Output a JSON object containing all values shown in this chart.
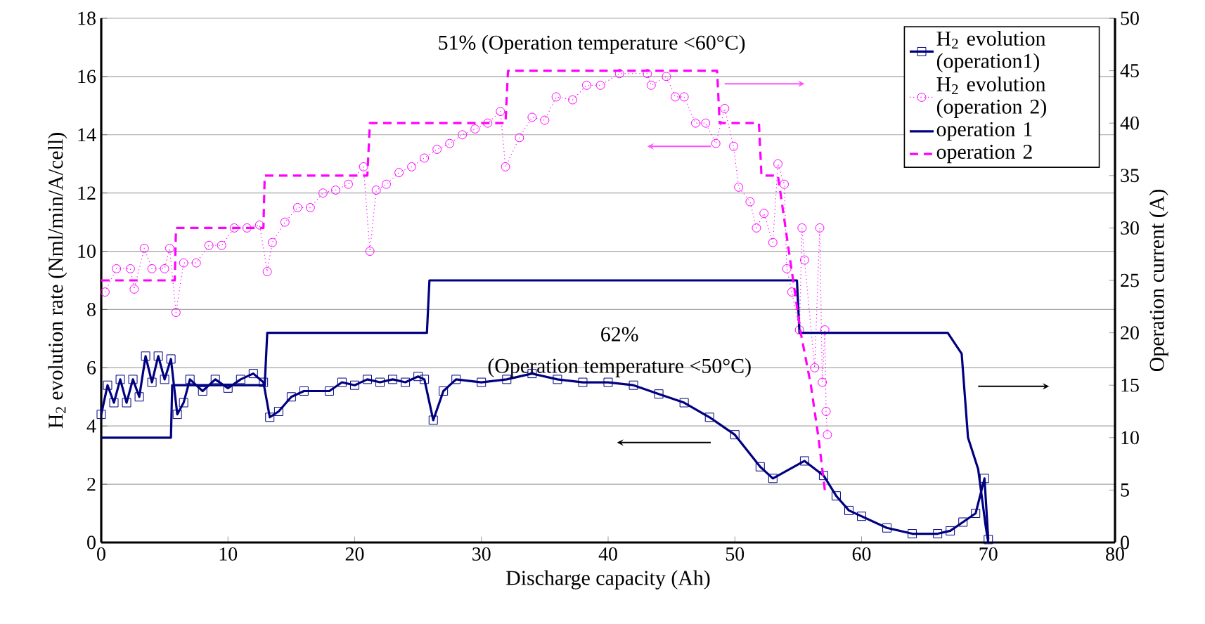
{
  "chart_data": {
    "type": "line",
    "xlabel": "Discharge capacity (Ah)",
    "ylabel": "H$_{2}$ evolution rate (Nml/min/A/cell)",
    "y2label": "Operation current (A)",
    "xlim": [
      0,
      80
    ],
    "xticks": [
      0,
      10,
      20,
      30,
      40,
      50,
      60,
      70,
      80
    ],
    "ylim": [
      0,
      18
    ],
    "yticks": [
      0,
      2,
      4,
      6,
      8,
      10,
      12,
      14,
      16,
      18
    ],
    "y2lim": [
      0,
      50
    ],
    "y2ticks": [
      0,
      5,
      10,
      15,
      20,
      25,
      30,
      35,
      40,
      45,
      50
    ],
    "grid": "y",
    "legend": "top right",
    "annotations": [
      "51% (Operation temperature <60°C)",
      "62%",
      "(Operation temperature <50°C)"
    ],
    "series": [
      {
        "name": "H$_{2}$ evolution (operation1)",
        "color": "#000080",
        "marker": "square",
        "line_style": "solid",
        "x": [
          0,
          0.5,
          1,
          1.5,
          2,
          2.5,
          3,
          3.5,
          4,
          4.5,
          5,
          5.5,
          6,
          6.5,
          7,
          8,
          9,
          10,
          11,
          12,
          12.8,
          13.3,
          14,
          15,
          16,
          18,
          19,
          20,
          21,
          22,
          23,
          24,
          25,
          25.5,
          26.2,
          27,
          28,
          30,
          32,
          34,
          36,
          38,
          40,
          42,
          44,
          46,
          48,
          50,
          52,
          53,
          55.5,
          57,
          58,
          59,
          60,
          62,
          64,
          66,
          67,
          68,
          69,
          69.7,
          70
        ],
        "values": [
          4.4,
          5.4,
          4.8,
          5.6,
          4.8,
          5.6,
          5.0,
          6.4,
          5.5,
          6.4,
          5.6,
          6.3,
          4.4,
          4.8,
          5.6,
          5.2,
          5.6,
          5.3,
          5.6,
          5.8,
          5.5,
          4.3,
          4.5,
          5.0,
          5.2,
          5.2,
          5.5,
          5.4,
          5.6,
          5.5,
          5.6,
          5.5,
          5.7,
          5.6,
          4.2,
          5.2,
          5.6,
          5.5,
          5.6,
          5.8,
          5.6,
          5.5,
          5.5,
          5.4,
          5.1,
          4.8,
          4.3,
          3.7,
          2.6,
          2.2,
          2.8,
          2.3,
          1.6,
          1.1,
          0.9,
          0.5,
          0.3,
          0.3,
          0.4,
          0.7,
          1.0,
          2.2,
          0.1
        ]
      },
      {
        "name": "H$_{2}$ evolution (operation 2)",
        "color": "#ff00ff",
        "marker": "circle",
        "line_style": "dotted",
        "x": [
          0.3,
          1.2,
          2.3,
          2.6,
          3.4,
          4,
          5,
          5.4,
          5.9,
          6.5,
          7.5,
          8.5,
          9.5,
          10.5,
          11.5,
          12.5,
          13.1,
          13.5,
          14.5,
          15.5,
          16.5,
          17.5,
          18.5,
          19.5,
          20.7,
          21.2,
          21.7,
          22.5,
          23.5,
          24.5,
          25.5,
          26.5,
          27.5,
          28.5,
          29.5,
          30.5,
          31.5,
          31.9,
          33,
          34,
          35,
          35.9,
          37.2,
          38.3,
          39.4,
          40.9,
          43.1,
          43.4,
          44.6,
          45.3,
          46,
          46.9,
          47.7,
          48.5,
          49.2,
          49.9,
          50.3,
          51.2,
          51.7,
          52.3,
          53,
          53.4,
          53.9,
          54.1,
          54.5,
          55.1,
          55.3,
          55.5,
          56.3,
          56.7,
          56.9,
          57.1,
          57.2,
          57.3
        ],
        "values": [
          8.6,
          9.4,
          9.4,
          8.7,
          10.1,
          9.4,
          9.4,
          10.1,
          7.9,
          9.6,
          9.6,
          10.2,
          10.2,
          10.8,
          10.8,
          10.9,
          9.3,
          10.3,
          11.0,
          11.5,
          11.5,
          12.0,
          12.1,
          12.3,
          12.9,
          10.0,
          12.1,
          12.3,
          12.7,
          12.9,
          13.2,
          13.5,
          13.7,
          14.0,
          14.2,
          14.4,
          14.8,
          12.9,
          13.9,
          14.6,
          14.5,
          15.3,
          15.2,
          15.7,
          15.7,
          16.1,
          16.1,
          15.7,
          16.0,
          15.3,
          15.3,
          14.4,
          14.4,
          13.7,
          14.9,
          13.6,
          12.2,
          11.7,
          10.8,
          11.3,
          10.3,
          13.0,
          12.3,
          9.4,
          8.6,
          7.3,
          10.8,
          9.7,
          6.0,
          10.8,
          5.5,
          7.3,
          4.5,
          3.7
        ]
      },
      {
        "name": "operation 1",
        "color": "#000080",
        "marker": "none",
        "line_style": "solid",
        "axis": "y2",
        "x": [
          0,
          5.5,
          5.6,
          12.9,
          13.1,
          25.7,
          25.9,
          54.9,
          55.1,
          66.8,
          67.9,
          68.4,
          69.2,
          69.8,
          70
        ],
        "values": [
          10,
          10,
          15,
          15,
          20,
          20,
          25,
          25,
          20,
          20,
          18,
          10,
          7,
          1.5,
          0
        ]
      },
      {
        "name": "operation 2",
        "color": "#ff00ff",
        "marker": "none",
        "line_style": "dashed",
        "axis": "y2",
        "x": [
          0,
          5.8,
          5.9,
          12.8,
          12.9,
          21.0,
          21.2,
          31.9,
          32.1,
          48.6,
          48.8,
          51.9,
          52.1,
          53.4,
          54,
          54.6,
          55.2,
          56,
          56.6,
          57.1
        ],
        "values": [
          25,
          25,
          30,
          30,
          35,
          35,
          40,
          40,
          45,
          45,
          40,
          40,
          35,
          35,
          30,
          25,
          20,
          15,
          10,
          5
        ]
      }
    ]
  }
}
